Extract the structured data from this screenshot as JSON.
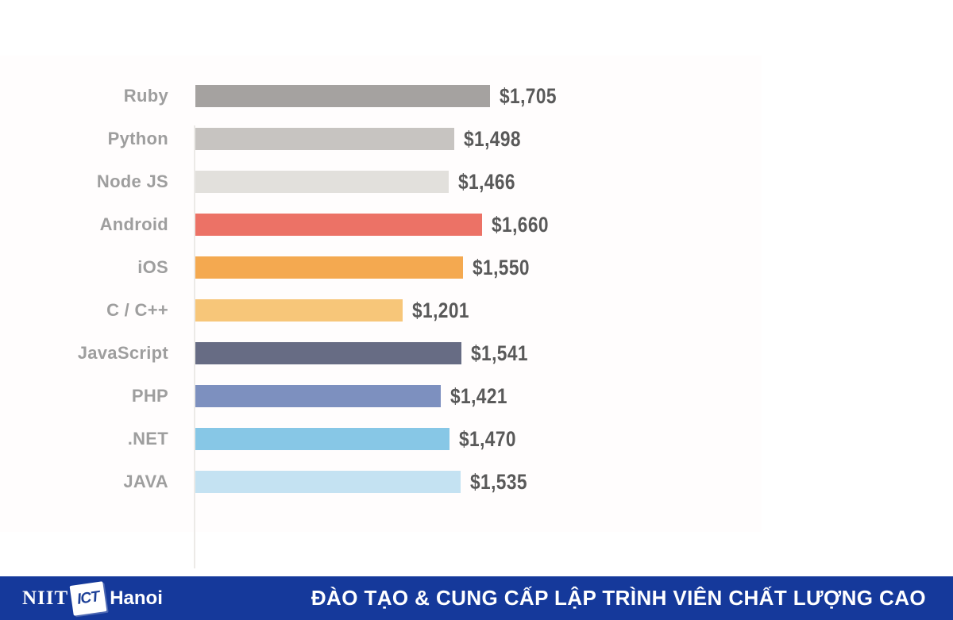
{
  "chart_data": {
    "type": "bar",
    "orientation": "horizontal",
    "title": "",
    "xlabel": "",
    "ylabel": "",
    "categories": [
      "Ruby",
      "Python",
      "Node JS",
      "Android",
      "iOS",
      "C / C++",
      "JavaScript",
      "PHP",
      ".NET",
      "JAVA"
    ],
    "values": [
      1705,
      1498,
      1466,
      1660,
      1550,
      1201,
      1541,
      1421,
      1470,
      1535
    ],
    "value_labels": [
      "$1,705",
      "$1,498",
      "$1,466",
      "$1,660",
      "$1,550",
      "$1,201",
      "$1,541",
      "$1,421",
      "$1,470",
      "$1,535"
    ],
    "bar_colors": [
      "#a5a2a0",
      "#c7c4c1",
      "#e2e0dc",
      "#ec7266",
      "#f4a950",
      "#f7c679",
      "#676c84",
      "#7d90bf",
      "#87c7e6",
      "#c4e2f2"
    ],
    "xlim": [
      0,
      1705
    ],
    "grid": false,
    "legend": false
  },
  "styles": {
    "label_color": "#9e9e9e",
    "value_color": "#595959",
    "axis_color": "#eceae7",
    "canvas_background": "#fffdfd",
    "footer_background": "#15399b"
  },
  "footer": {
    "logo_niit": "NIIT",
    "logo_ict": "ICT",
    "logo_hanoi": "Hanoi",
    "slogan": "ĐÀO TẠO & CUNG CẤP LẬP TRÌNH VIÊN CHẤT LƯỢNG CAO"
  }
}
